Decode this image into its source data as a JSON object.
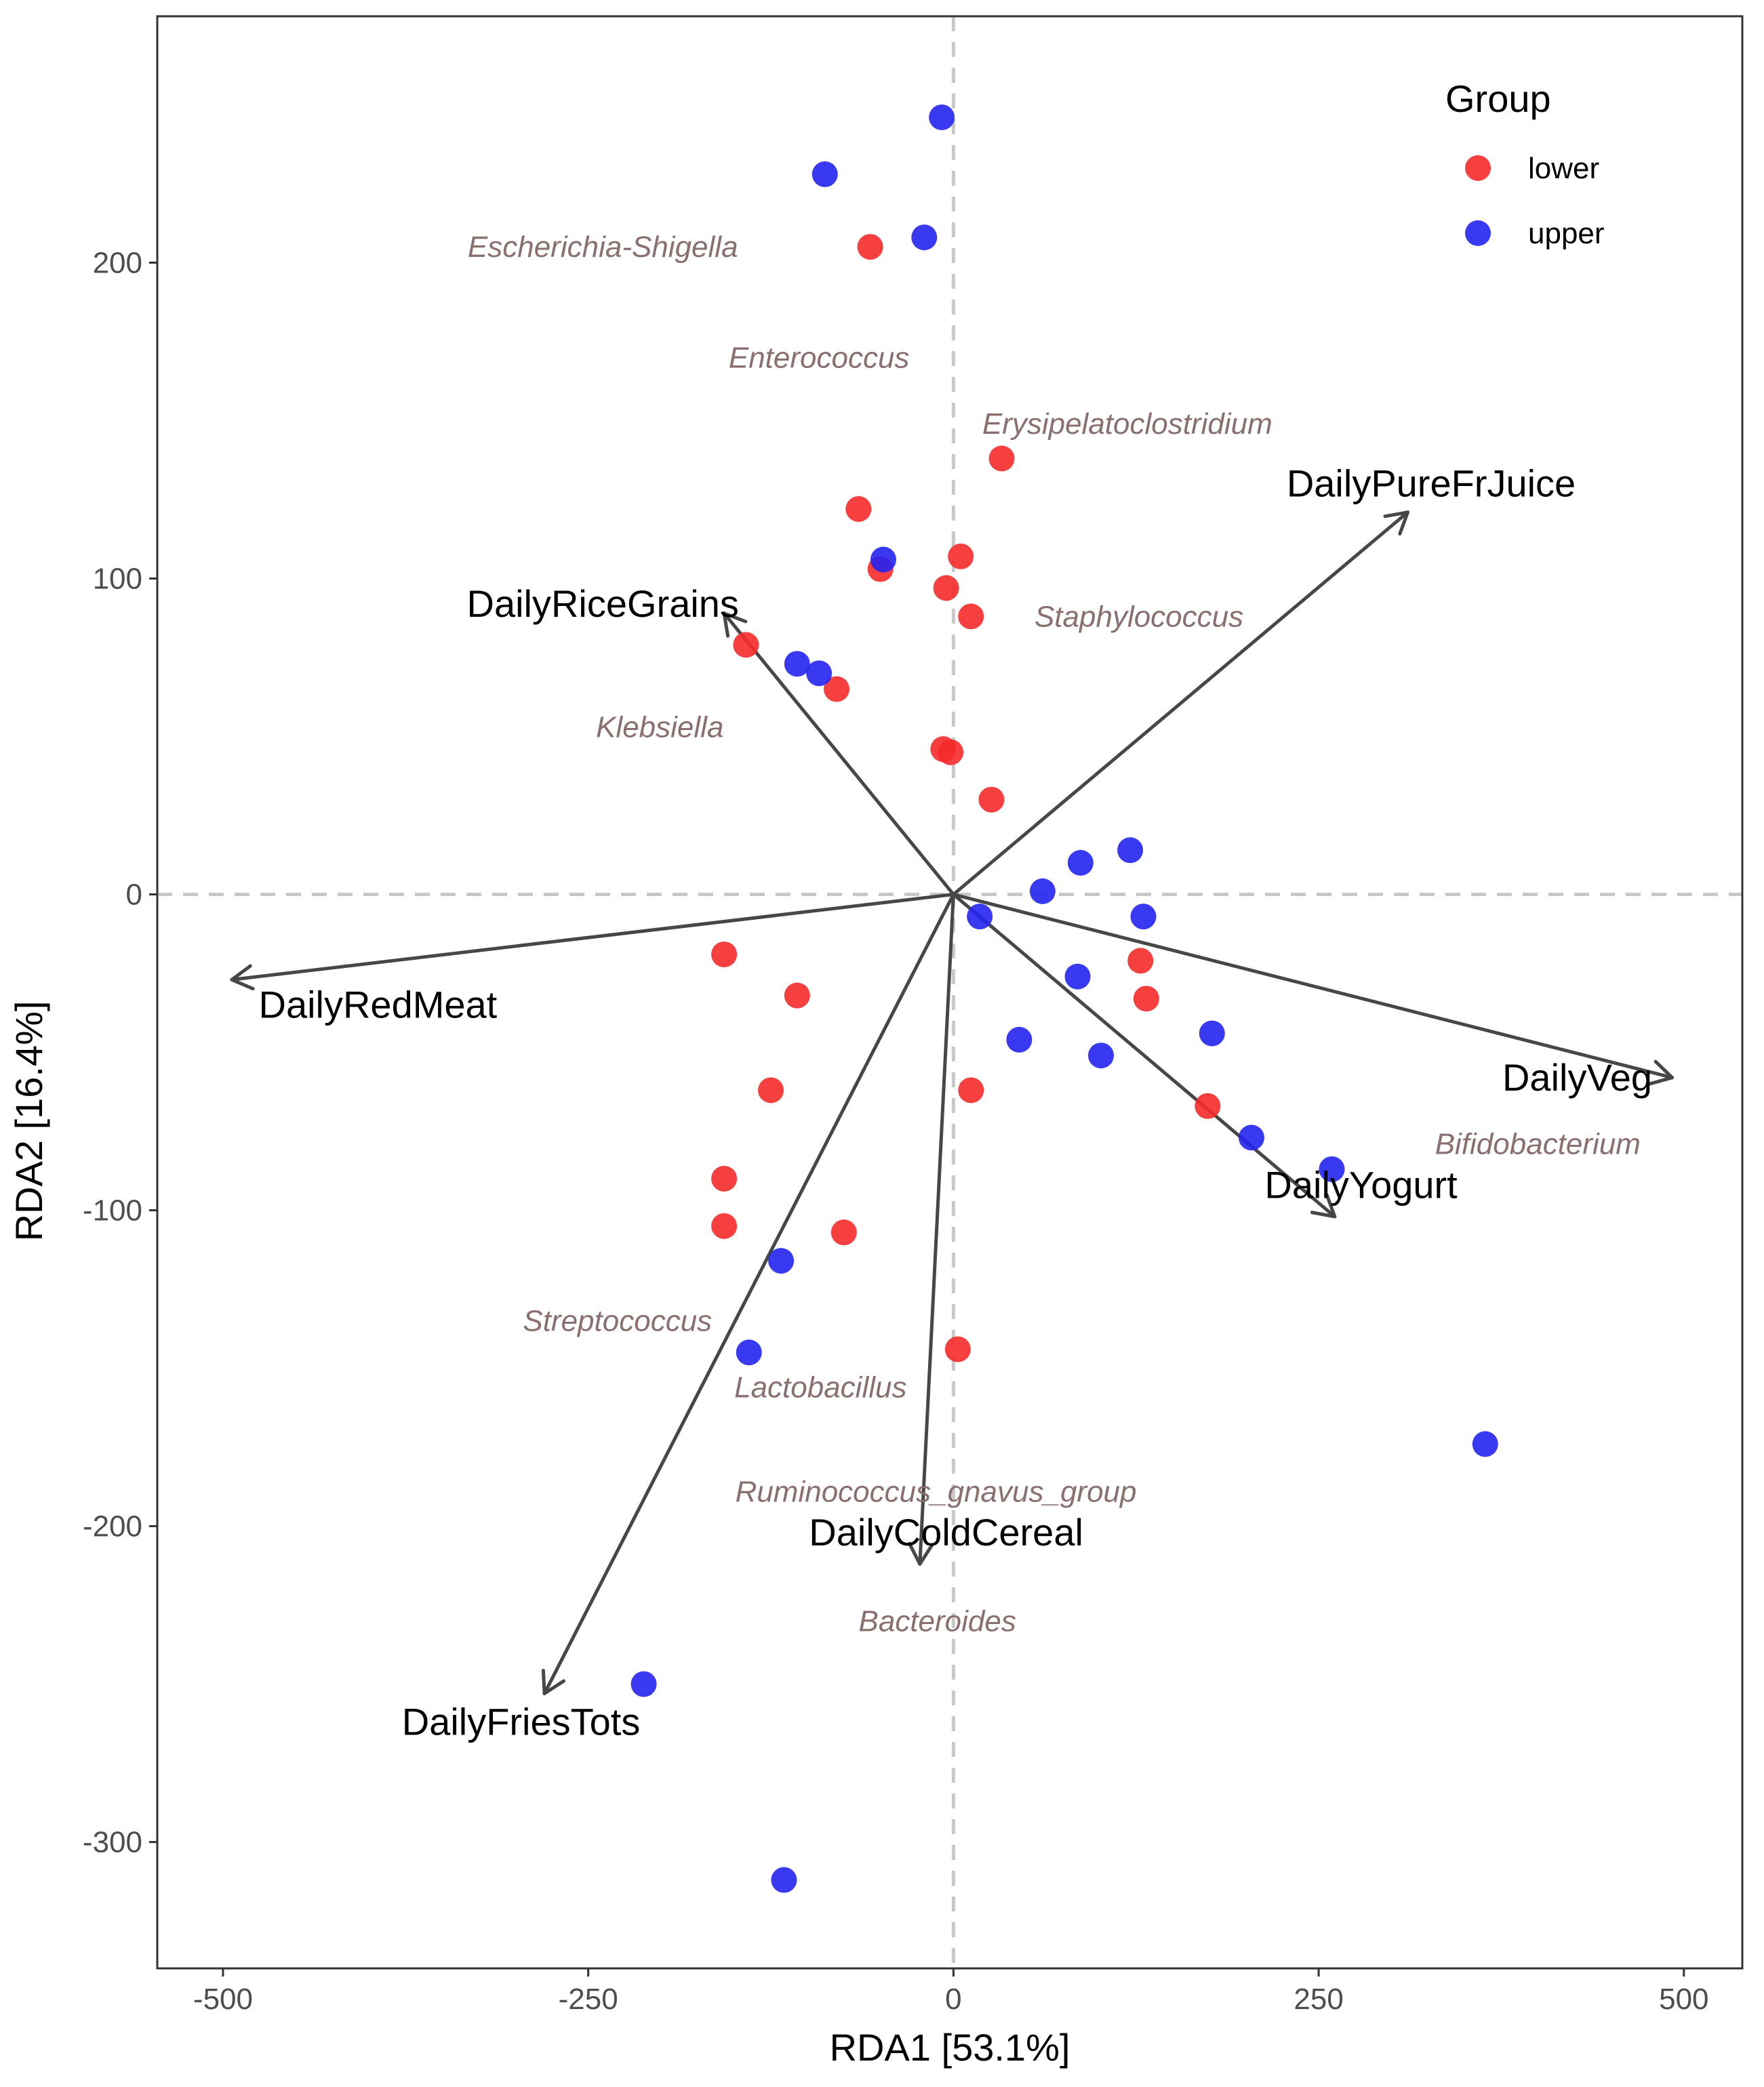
{
  "chart_data": {
    "type": "scatter",
    "subtype": "rda-biplot",
    "xlabel": "RDA1 [53.1%]",
    "ylabel": "RDA2 [16.4%]",
    "xlim": [
      -545,
      540
    ],
    "ylim": [
      -340,
      278
    ],
    "x_ticks": [
      -500,
      -250,
      0,
      250,
      500
    ],
    "x_tick_labels": [
      "-500",
      "-250",
      "0",
      "250",
      "500"
    ],
    "y_ticks": [
      200,
      100,
      0,
      -100,
      -200,
      -300
    ],
    "y_tick_labels": [
      "200",
      "100",
      "0",
      "-100",
      "-200",
      "-300"
    ],
    "grid": false,
    "zero_lines": "dashed",
    "legend": {
      "title": "Group",
      "position": "top-right",
      "entries": [
        {
          "label": "lower",
          "color": "#f52a2a"
        },
        {
          "label": "upper",
          "color": "#2323f0"
        }
      ]
    },
    "series": [
      {
        "name": "lower",
        "color": "#f52a2a",
        "points": [
          [
            -57,
            205
          ],
          [
            33,
            138
          ],
          [
            -65,
            122
          ],
          [
            5,
            107
          ],
          [
            -50,
            103
          ],
          [
            -5,
            97
          ],
          [
            12,
            88
          ],
          [
            -142,
            79
          ],
          [
            -80,
            65
          ],
          [
            -7,
            46
          ],
          [
            -2,
            45
          ],
          [
            26,
            30
          ],
          [
            -157,
            -19
          ],
          [
            -107,
            -32
          ],
          [
            -125,
            -62
          ],
          [
            12,
            -62
          ],
          [
            128,
            -21
          ],
          [
            132,
            -33
          ],
          [
            174,
            -67
          ],
          [
            -157,
            -90
          ],
          [
            -157,
            -105
          ],
          [
            -75,
            -107
          ],
          [
            3,
            -144
          ]
        ]
      },
      {
        "name": "upper",
        "color": "#2323f0",
        "points": [
          [
            -8,
            246
          ],
          [
            -88,
            228
          ],
          [
            -20,
            208
          ],
          [
            -48,
            106
          ],
          [
            -107,
            73
          ],
          [
            -92,
            70
          ],
          [
            87,
            10
          ],
          [
            121,
            14
          ],
          [
            61,
            1
          ],
          [
            18,
            -7
          ],
          [
            130,
            -7
          ],
          [
            85,
            -26
          ],
          [
            45,
            -46
          ],
          [
            101,
            -51
          ],
          [
            177,
            -44
          ],
          [
            204,
            -77
          ],
          [
            259,
            -87
          ],
          [
            -118,
            -116
          ],
          [
            -140,
            -145
          ],
          [
            364,
            -174
          ],
          [
            -212,
            -250
          ],
          [
            -116,
            -312
          ]
        ]
      }
    ],
    "env_vectors": [
      {
        "label": "DailyPureFrJuice",
        "end": [
          311,
          121
        ],
        "label_at": [
          327,
          130
        ]
      },
      {
        "label": "DailyRiceGrains",
        "end": [
          -157,
          89
        ],
        "label_at": [
          -240,
          92
        ]
      },
      {
        "label": "DailyRedMeat",
        "end": [
          -494,
          -27
        ],
        "label_at": [
          -394,
          -35
        ]
      },
      {
        "label": "DailyVeg",
        "end": [
          492,
          -58
        ],
        "label_at": [
          427,
          -58
        ]
      },
      {
        "label": "DailyYogurt",
        "end": [
          261,
          -102
        ],
        "label_at": [
          279,
          -92
        ]
      },
      {
        "label": "DailyColdCereal",
        "end": [
          -23,
          -212
        ],
        "label_at": [
          -5,
          -202
        ]
      },
      {
        "label": "DailyFriesTots",
        "end": [
          -280,
          -253
        ],
        "label_at": [
          -296,
          -262
        ]
      }
    ],
    "taxa": [
      {
        "label": "Escherichia-Shigella",
        "at": [
          -240,
          205
        ]
      },
      {
        "label": "Enterococcus",
        "at": [
          -92,
          170
        ]
      },
      {
        "label": "Erysipelatoclostridium",
        "at": [
          119,
          149
        ]
      },
      {
        "label": "Staphylococcus",
        "at": [
          127,
          88
        ]
      },
      {
        "label": "Klebsiella",
        "at": [
          -201,
          53
        ]
      },
      {
        "label": "Bifidobacterium",
        "at": [
          400,
          -79
        ]
      },
      {
        "label": "Streptococcus",
        "at": [
          -230,
          -135
        ]
      },
      {
        "label": "Lactobacillus",
        "at": [
          -91,
          -156
        ]
      },
      {
        "label": "Ruminococcus_gnavus_group",
        "at": [
          -12,
          -189
        ]
      },
      {
        "label": "Bacteroides",
        "at": [
          -11,
          -230
        ]
      }
    ]
  }
}
